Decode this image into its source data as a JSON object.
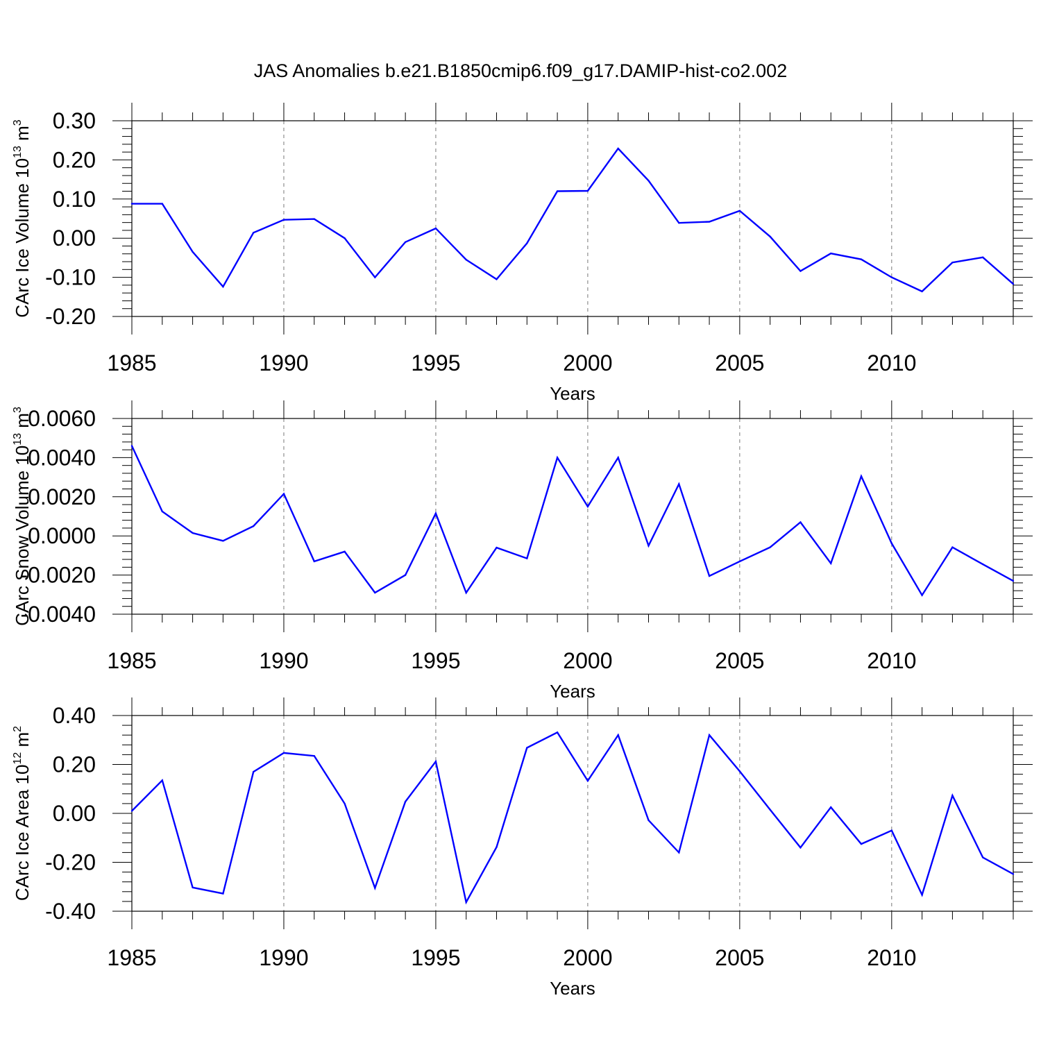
{
  "title": "JAS Anomalies b.e21.B1850cmip6.f09_g17.DAMIP-hist-co2.002",
  "colors": {
    "line": "#0000ff",
    "axis": "#000000",
    "grid": "#777777",
    "background": "#ffffff"
  },
  "chart_data": [
    {
      "type": "line",
      "xlabel": "Years",
      "ylabel": {
        "text": "CArc Ice Volume 10",
        "exp": "13",
        "unit": " m",
        "unit_exp": "3"
      },
      "xlim": [
        1985,
        2014
      ],
      "ylim": [
        -0.2,
        0.3
      ],
      "xticks": [
        1985,
        1990,
        1995,
        2000,
        2005,
        2010
      ],
      "xtick_labels": [
        "1985",
        "1990",
        "1995",
        "2000",
        "2005",
        "2010"
      ],
      "yticks": [
        -0.2,
        -0.1,
        0.0,
        0.1,
        0.2,
        0.3
      ],
      "ytick_labels": [
        "-0.20",
        "-0.10",
        "0.00",
        "0.10",
        "0.20",
        "0.30"
      ],
      "grid": "vertical dashed at major x ticks",
      "series": [
        {
          "name": "CArc Ice Volume",
          "x": [
            1985,
            1986,
            1987,
            1988,
            1989,
            1990,
            1991,
            1992,
            1993,
            1994,
            1995,
            1996,
            1997,
            1998,
            1999,
            2000,
            2001,
            2002,
            2003,
            2004,
            2005,
            2006,
            2007,
            2008,
            2009,
            2010,
            2011,
            2012,
            2013,
            2014
          ],
          "values": [
            0.088,
            0.088,
            -0.035,
            -0.124,
            0.014,
            0.047,
            0.049,
            0.0,
            -0.1,
            -0.01,
            0.025,
            -0.055,
            -0.105,
            -0.013,
            0.12,
            0.121,
            0.229,
            0.147,
            0.039,
            0.042,
            0.07,
            0.004,
            -0.084,
            -0.039,
            -0.054,
            -0.1,
            -0.136,
            -0.062,
            -0.049,
            -0.117
          ]
        }
      ]
    },
    {
      "type": "line",
      "xlabel": "Years",
      "ylabel": {
        "text": "CArc Snow Volume 10",
        "exp": "13",
        "unit": " m",
        "unit_exp": "3"
      },
      "xlim": [
        1985,
        2014
      ],
      "ylim": [
        -0.004,
        0.006
      ],
      "xticks": [
        1985,
        1990,
        1995,
        2000,
        2005,
        2010
      ],
      "xtick_labels": [
        "1985",
        "1990",
        "1995",
        "2000",
        "2005",
        "2010"
      ],
      "yticks": [
        -0.004,
        -0.002,
        0.0,
        0.002,
        0.004,
        0.006
      ],
      "ytick_labels": [
        "-0.0040",
        "-0.0020",
        "0.0000",
        "0.0020",
        "0.0040",
        "0.0060"
      ],
      "grid": "vertical dashed at major x ticks",
      "series": [
        {
          "name": "CArc Snow Volume",
          "x": [
            1985,
            1986,
            1987,
            1988,
            1989,
            1990,
            1991,
            1992,
            1993,
            1994,
            1995,
            1996,
            1997,
            1998,
            1999,
            2000,
            2001,
            2002,
            2003,
            2004,
            2005,
            2006,
            2007,
            2008,
            2009,
            2010,
            2011,
            2012,
            2013,
            2014
          ],
          "values": [
            0.0046,
            0.00125,
            0.00015,
            -0.00025,
            0.0005,
            0.00215,
            -0.0013,
            -0.0008,
            -0.0029,
            -0.002,
            0.00115,
            -0.0029,
            -0.0006,
            -0.00115,
            0.004,
            0.0015,
            0.004,
            -0.0005,
            0.00265,
            -0.00205,
            -0.0013,
            -0.00058,
            0.0007,
            -0.0014,
            0.00305,
            -0.00038,
            -0.00303,
            -0.00058,
            -0.00145,
            -0.0023
          ]
        }
      ]
    },
    {
      "type": "line",
      "xlabel": "Years",
      "ylabel": {
        "text": "CArc Ice Area 10",
        "exp": "12",
        "unit": " m",
        "unit_exp": "2"
      },
      "xlim": [
        1985,
        2014
      ],
      "ylim": [
        -0.4,
        0.4
      ],
      "xticks": [
        1985,
        1990,
        1995,
        2000,
        2005,
        2010
      ],
      "xtick_labels": [
        "1985",
        "1990",
        "1995",
        "2000",
        "2005",
        "2010"
      ],
      "yticks": [
        -0.4,
        -0.2,
        0.0,
        0.2,
        0.4
      ],
      "ytick_labels": [
        "-0.40",
        "-0.20",
        "0.00",
        "0.20",
        "0.40"
      ],
      "grid": "vertical dashed at major x ticks",
      "series": [
        {
          "name": "CArc Ice Area",
          "x": [
            1985,
            1986,
            1987,
            1988,
            1989,
            1990,
            1991,
            1992,
            1993,
            1994,
            1995,
            1996,
            1997,
            1998,
            1999,
            2000,
            2001,
            2002,
            2003,
            2004,
            2005,
            2006,
            2007,
            2008,
            2009,
            2010,
            2011,
            2012,
            2013,
            2014
          ],
          "values": [
            0.01,
            0.135,
            -0.303,
            -0.328,
            0.17,
            0.247,
            0.235,
            0.04,
            -0.305,
            0.048,
            0.212,
            -0.363,
            -0.138,
            0.268,
            0.331,
            0.133,
            0.32,
            -0.028,
            -0.16,
            0.32,
            0.172,
            0.015,
            -0.14,
            0.025,
            -0.125,
            -0.07,
            -0.333,
            0.073,
            -0.18,
            -0.248
          ]
        }
      ]
    }
  ]
}
